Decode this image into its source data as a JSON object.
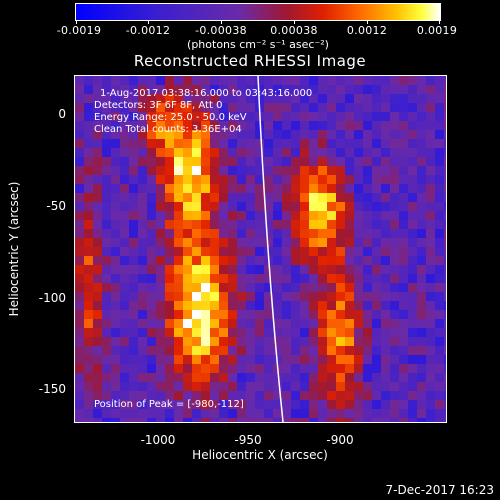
{
  "colorbar": {
    "tick_labels": [
      "-0.0019",
      "-0.0012",
      "-0.00038",
      "0.00038",
      "0.0012",
      "0.0019"
    ],
    "units": "(photons cm⁻² s⁻¹ asec⁻²)"
  },
  "title": "Reconstructed RHESSI Image",
  "annotations": {
    "time": "1-Aug-2017 03:38:16.000 to 03:43:16.000",
    "detectors": "Detectors: 3F 6F 8F, Att 0",
    "energy": "Energy Range: 25.0 - 50.0 keV",
    "clean": "Clean     Total counts: 3.36E+04",
    "peak": "Position of Peak = [-980,-112]"
  },
  "axes": {
    "xlabel": "Heliocentric X (arcsec)",
    "ylabel": "Heliocentric Y (arcsec)",
    "xticks": [
      "-1000",
      "-950",
      "-900"
    ],
    "yticks": [
      "0",
      "-50",
      "-100",
      "-150"
    ],
    "xlim": [
      -1045,
      -945
    ],
    "ylim": [
      -170,
      20
    ]
  },
  "timestamp": "7-Dec-2017 16:23",
  "colors": {
    "low": "#0000ff",
    "mid": "#6a2aa8",
    "high": "#ffffff"
  }
}
